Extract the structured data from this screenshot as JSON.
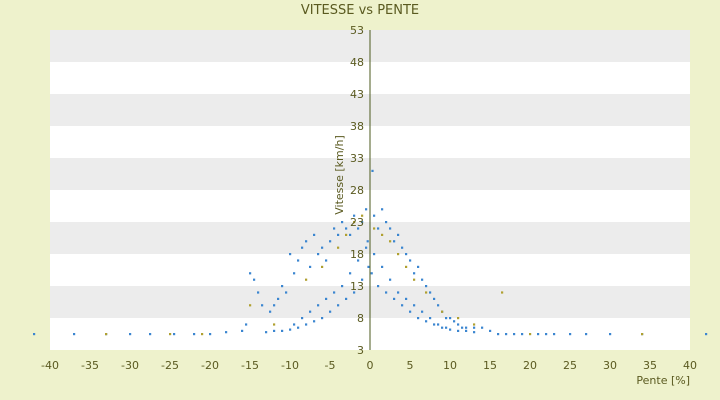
{
  "chart_data": {
    "type": "scatter",
    "title": "VITESSE vs PENTE",
    "xlabel": "Pente [%]",
    "ylabel": "Vitesse [km/h]",
    "xlim": [
      -40,
      40
    ],
    "ylim": [
      3,
      53
    ],
    "x_ticks": [
      -40,
      -35,
      -30,
      -25,
      -20,
      -15,
      -10,
      -5,
      0,
      5,
      10,
      15,
      20,
      25,
      30,
      35,
      40
    ],
    "y_ticks": [
      3,
      8,
      13,
      18,
      23,
      28,
      33,
      38,
      43,
      48,
      53
    ],
    "grid": "horizontal-bands",
    "colors": {
      "series_primary": "#3b86d0",
      "series_secondary": "#b0a030",
      "band": "#ececec",
      "plot_bg": "#ffffff"
    },
    "series": [
      {
        "color": "#3b86d0",
        "x": [
          -42,
          -37,
          -33,
          -30,
          -27.5,
          -24.5,
          -22,
          -20,
          -18,
          -16,
          -15.5,
          -15,
          -14.5,
          -14,
          -13.5,
          -12.5,
          -12,
          -11.5,
          -11,
          -10.5,
          -10,
          -9.5,
          -9,
          -8.5,
          -8,
          -7.5,
          -7,
          -6.5,
          -6,
          -5.5,
          -5,
          -4.5,
          -4,
          -3.5,
          -3,
          -2.5,
          -2,
          -1.5,
          -1,
          -0.5,
          -0.3,
          0.3,
          0.5,
          1,
          1.5,
          2,
          2.5,
          3,
          3.5,
          4,
          4.5,
          5,
          5.5,
          6,
          6.5,
          7,
          7.5,
          8,
          8.5,
          9,
          9.5,
          10,
          10.5,
          11,
          11.5,
          12,
          13,
          14,
          15,
          16,
          17,
          18,
          19,
          21,
          22,
          23,
          25,
          27,
          30,
          34,
          42,
          -0.2,
          0.2,
          -1,
          1,
          -2,
          2,
          -3,
          3,
          -4,
          4,
          -5,
          5,
          -6,
          6,
          -7,
          7,
          -8,
          8,
          -9,
          9,
          -10,
          10,
          -11,
          11,
          -12,
          12,
          -13,
          13,
          -0.5,
          0.5,
          -1.5,
          1.5,
          -2.5,
          2.5,
          -3.5,
          3.5,
          -4.5,
          4.5,
          -5.5,
          5.5,
          -6.5,
          6.5,
          -7.5,
          7.5,
          -8.5,
          8.5,
          -9.5,
          9.5
        ],
        "y": [
          5.5,
          5.5,
          5.5,
          5.5,
          5.5,
          5.5,
          5.5,
          5.5,
          5.8,
          6,
          7,
          15,
          14,
          12,
          10,
          9,
          10,
          11,
          13,
          12,
          18,
          15,
          17,
          19,
          20,
          16,
          21,
          18,
          19,
          17,
          20,
          22,
          21,
          23,
          22,
          21,
          24,
          22,
          23,
          25,
          20,
          31,
          24,
          22,
          25,
          23,
          22,
          20,
          21,
          19,
          18,
          17,
          15,
          16,
          14,
          13,
          12,
          11,
          10,
          9,
          8,
          8,
          7.5,
          7,
          6.5,
          6.5,
          6.5,
          6.5,
          6,
          5.5,
          5.5,
          5.5,
          5.5,
          5.5,
          5.5,
          5.5,
          5.5,
          5.5,
          5.5,
          5.5,
          5.5,
          16,
          15,
          14,
          13,
          12,
          12,
          11,
          11,
          10,
          10,
          9,
          9,
          8,
          8,
          7.5,
          7.5,
          7,
          7,
          6.5,
          6.5,
          6.2,
          6.2,
          6,
          6,
          6,
          6,
          5.8,
          5.8,
          19,
          18,
          17,
          16,
          15,
          14,
          13,
          12,
          12,
          11,
          11,
          10,
          10,
          9,
          9,
          8,
          8,
          7,
          7,
          6.5
        ]
      },
      {
        "color": "#b0a030",
        "x": [
          -33,
          -25,
          -21,
          -15,
          -12,
          -8,
          -6,
          -4,
          -3,
          -2,
          -1,
          0.5,
          1.5,
          2.5,
          3.5,
          4.5,
          5.5,
          7,
          9,
          11,
          13,
          16.5,
          20,
          34
        ],
        "y": [
          5.5,
          5.5,
          5.5,
          10,
          7,
          14,
          16,
          19,
          21,
          23,
          24,
          22,
          21,
          20,
          18,
          16,
          14,
          12,
          9,
          8,
          7,
          12,
          5.5,
          5.5
        ]
      }
    ]
  }
}
